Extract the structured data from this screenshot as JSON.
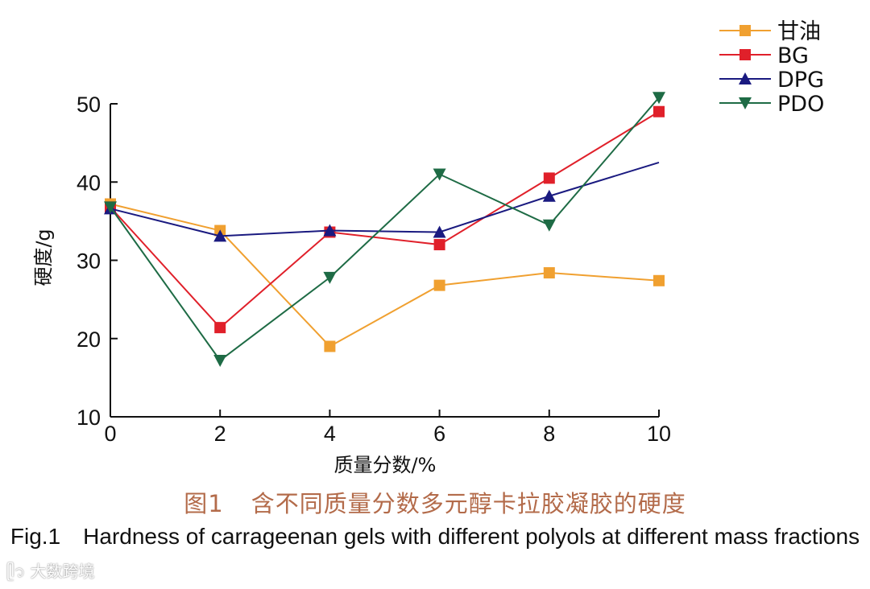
{
  "chart_data": {
    "type": "line",
    "x": [
      0,
      2,
      4,
      6,
      8,
      10
    ],
    "xlabel": "质量分数/%",
    "ylabel": "硬度/g",
    "xlim": [
      0,
      10
    ],
    "ylim": [
      10,
      50
    ],
    "xticks": [
      "0",
      "2",
      "4",
      "6",
      "8",
      "10"
    ],
    "yticks": [
      "10",
      "20",
      "30",
      "40",
      "50"
    ],
    "grid": false,
    "legend_position": "top-right",
    "series": [
      {
        "name": "甘油",
        "values": [
          37.2,
          33.8,
          19.0,
          26.8,
          28.4,
          27.4
        ],
        "color": "#f0a030",
        "marker": "square"
      },
      {
        "name": "BG",
        "values": [
          36.8,
          21.4,
          33.6,
          32.0,
          40.5,
          49.0
        ],
        "color": "#e0202a",
        "marker": "square"
      },
      {
        "name": "DPG",
        "values": [
          36.6,
          33.1,
          33.8,
          33.6,
          38.2,
          42.5
        ],
        "color": "#1a1a80",
        "marker": "triangle-up",
        "marker_on_last": false
      },
      {
        "name": "PDO",
        "values": [
          36.8,
          17.2,
          27.8,
          41.0,
          34.5,
          50.8
        ],
        "color": "#1e6b45",
        "marker": "triangle-down"
      }
    ]
  },
  "caption": {
    "cn_fig_no": "图1",
    "cn_text": "含不同质量分数多元醇卡拉胶凝胶的硬度",
    "en_fig_no": "Fig.1",
    "en_text": "Hardness of carrageenan gels with different polyols at different mass fractions"
  },
  "watermark": "大数跨境"
}
